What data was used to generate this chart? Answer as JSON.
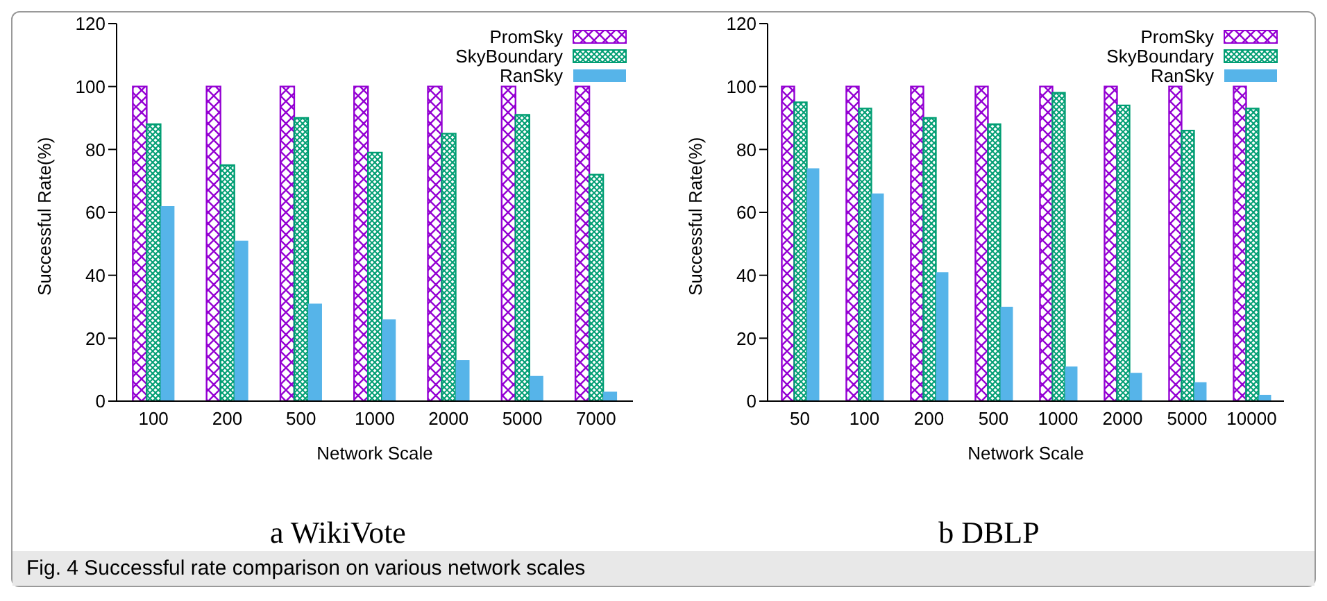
{
  "chart_data": [
    {
      "type": "bar",
      "title": "a WikiVote",
      "xlabel": "Network Scale",
      "ylabel": "Successful Rate(%)",
      "categories": [
        "100",
        "200",
        "500",
        "1000",
        "2000",
        "5000",
        "7000"
      ],
      "series": [
        {
          "name": "PromSky",
          "color": "#9400d3",
          "values": [
            100,
            100,
            100,
            100,
            100,
            100,
            100
          ]
        },
        {
          "name": "SkyBoundary",
          "color": "#009e73",
          "values": [
            88,
            75,
            90,
            79,
            85,
            91,
            72
          ]
        },
        {
          "name": "RanSky",
          "color": "#56b4e9",
          "values": [
            62,
            51,
            31,
            26,
            13,
            8,
            3
          ]
        }
      ],
      "ylim": [
        0,
        120
      ],
      "yticks": [
        0,
        20,
        40,
        60,
        80,
        100,
        120
      ],
      "legend": "top right",
      "grid": false,
      "annotations": [
        "Fig. 4 Successful rate comparison on various network scales"
      ]
    },
    {
      "type": "bar",
      "title": "b DBLP",
      "xlabel": "Network Scale",
      "ylabel": "Successful Rate(%)",
      "categories": [
        "50",
        "100",
        "200",
        "500",
        "1000",
        "2000",
        "5000",
        "10000"
      ],
      "series": [
        {
          "name": "PromSky",
          "color": "#9400d3",
          "values": [
            100,
            100,
            100,
            100,
            100,
            100,
            100,
            100
          ]
        },
        {
          "name": "SkyBoundary",
          "color": "#009e73",
          "values": [
            95,
            93,
            90,
            88,
            98,
            94,
            86,
            93
          ]
        },
        {
          "name": "RanSky",
          "color": "#56b4e9",
          "values": [
            74,
            66,
            41,
            30,
            11,
            9,
            6,
            2
          ]
        }
      ],
      "ylim": [
        0,
        120
      ],
      "yticks": [
        0,
        20,
        40,
        60,
        80,
        100,
        120
      ],
      "legend": "top right",
      "grid": false
    }
  ]
}
